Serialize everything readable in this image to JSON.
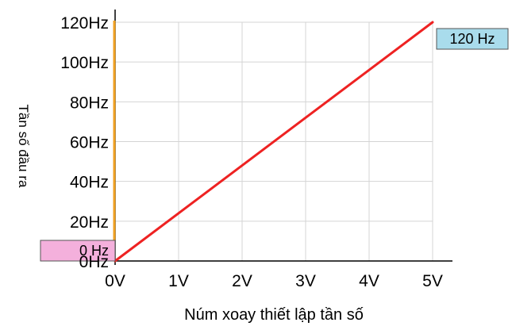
{
  "chart_data": {
    "type": "line",
    "xlabel": "Núm xoay thiết lập tần số",
    "ylabel": "Tần số đầu ra",
    "xlim": [
      0,
      5
    ],
    "ylim": [
      0,
      120
    ],
    "x_ticks": [
      "0V",
      "1V",
      "2V",
      "3V",
      "4V",
      "5V"
    ],
    "y_ticks": [
      "0Hz",
      "20Hz",
      "40Hz",
      "60Hz",
      "80Hz",
      "100Hz",
      "120Hz"
    ],
    "grid": true,
    "series": [
      {
        "color": "#ee2222",
        "x": [
          0,
          5
        ],
        "y": [
          0,
          120
        ]
      }
    ],
    "marker_line": {
      "x": 0,
      "color": "#f0a020"
    },
    "annotations": [
      {
        "text": "120 Hz",
        "x": 5,
        "y": 120,
        "fill": "#a9dcec",
        "side": "right"
      },
      {
        "text": "0 Hz",
        "x": 0,
        "y": 0,
        "fill": "#f4b0dc",
        "side": "left"
      }
    ]
  }
}
